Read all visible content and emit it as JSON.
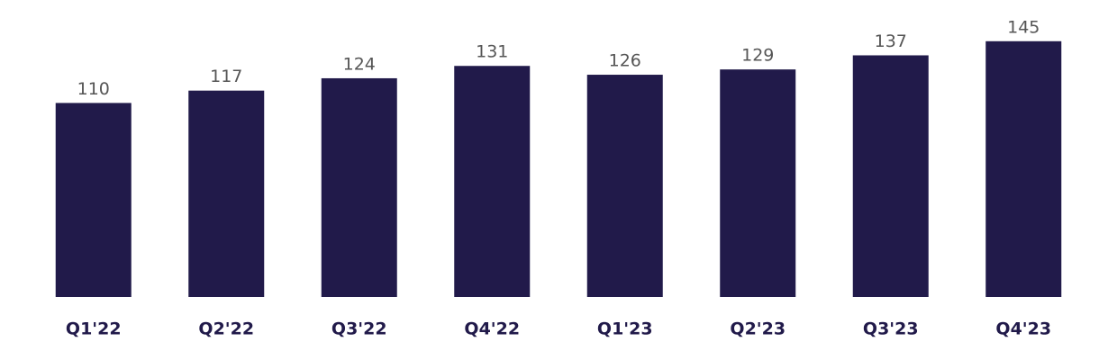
{
  "chart_data": {
    "type": "bar",
    "categories": [
      "Q1'22",
      "Q2'22",
      "Q3'22",
      "Q4'22",
      "Q1'23",
      "Q2'23",
      "Q3'23",
      "Q4'23"
    ],
    "values": [
      110,
      117,
      124,
      131,
      126,
      129,
      137,
      145
    ],
    "color": "#211a4a",
    "ylim": [
      0,
      150
    ]
  }
}
